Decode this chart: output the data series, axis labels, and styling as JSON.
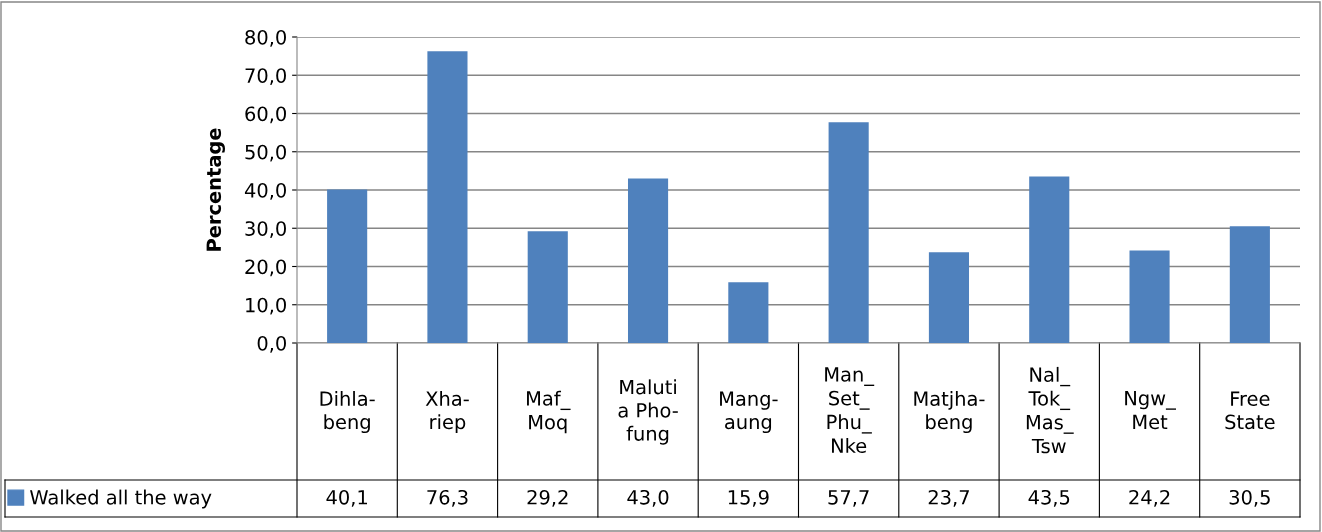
{
  "chart_data": {
    "type": "bar",
    "ylabel": "Percentage",
    "categories": [
      "Dihla-\nbeng",
      "Xha-\nriep",
      "Maf_\nMoq",
      "Maluti\na Pho-\nfung",
      "Mang-\naung",
      "Man_\nSet_\nPhu_\nNke",
      "Matjha-\nbeng",
      "Nal_\nTok_\nMas_\nTsw",
      "Ngw_\nMet",
      "Free\nState"
    ],
    "series": [
      {
        "name": "Walked all the way",
        "color": "#4f81bd",
        "values": [
          40.1,
          76.3,
          29.2,
          43.0,
          15.9,
          57.7,
          23.7,
          43.5,
          24.2,
          30.5
        ],
        "value_labels": [
          "40,1",
          "76,3",
          "29,2",
          "43,0",
          "15,9",
          "57,7",
          "23,7",
          "43,5",
          "24,2",
          "30,5"
        ]
      }
    ],
    "ylim": [
      0,
      80
    ],
    "yticks": [
      {
        "value": 0,
        "label": "0,0"
      },
      {
        "value": 10,
        "label": "10,0"
      },
      {
        "value": 20,
        "label": "20,0"
      },
      {
        "value": 30,
        "label": "30,0"
      },
      {
        "value": 40,
        "label": "40,0"
      },
      {
        "value": 50,
        "label": "50,0"
      },
      {
        "value": 60,
        "label": "60,0"
      },
      {
        "value": 70,
        "label": "70,0"
      },
      {
        "value": 80,
        "label": "80,0"
      }
    ],
    "grid": "y",
    "legend": "bottom left"
  }
}
